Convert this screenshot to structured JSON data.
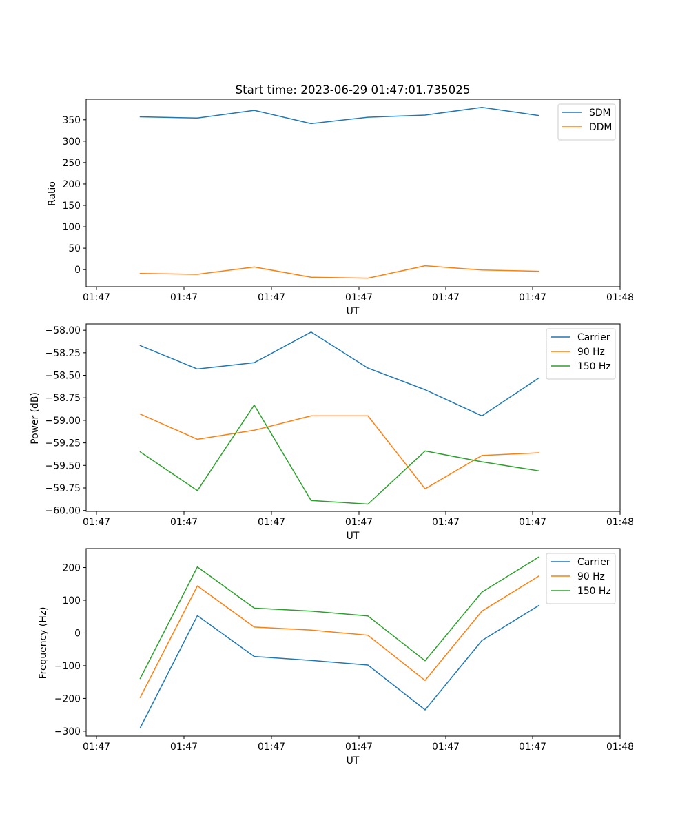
{
  "chart_data": [
    {
      "type": "line",
      "title": "Start time: 2023-06-29 01:47:01.735025",
      "xlabel": "UT",
      "ylabel": "Ratio",
      "x_tick_labels": [
        "01:47",
        "01:47",
        "01:47",
        "01:47",
        "01:47",
        "01:47",
        "01:48"
      ],
      "ylim": [
        -40,
        398
      ],
      "yticks": [
        0,
        50,
        100,
        150,
        200,
        250,
        300,
        350
      ],
      "ytick_labels": [
        "0",
        "50",
        "100",
        "150",
        "200",
        "250",
        "300",
        "350"
      ],
      "legend": "top-right",
      "grid": false,
      "series": [
        {
          "name": "SDM",
          "color": "#1f77b4",
          "values": [
            357,
            354,
            372,
            341,
            356,
            361,
            379,
            360
          ]
        },
        {
          "name": "DDM",
          "color": "#ff7f0e",
          "values": [
            -9,
            -11,
            6,
            -18,
            -20,
            9,
            -1,
            -4
          ]
        }
      ]
    },
    {
      "type": "line",
      "title": "",
      "xlabel": "UT",
      "ylabel": "Power (dB)",
      "x_tick_labels": [
        "01:47",
        "01:47",
        "01:47",
        "01:47",
        "01:47",
        "01:47",
        "01:48"
      ],
      "ylim": [
        -60.01,
        -57.93
      ],
      "yticks": [
        -60.0,
        -59.75,
        -59.5,
        -59.25,
        -59.0,
        -58.75,
        -58.5,
        -58.25,
        -58.0
      ],
      "ytick_labels": [
        "−60.00",
        "−59.75",
        "−59.50",
        "−59.25",
        "−59.00",
        "−58.75",
        "−58.50",
        "−58.25",
        "−58.00"
      ],
      "legend": "top-right",
      "grid": false,
      "series": [
        {
          "name": "Carrier",
          "color": "#1f77b4",
          "values": [
            -58.17,
            -58.43,
            -58.36,
            -58.02,
            -58.42,
            -58.66,
            -58.95,
            -58.53
          ]
        },
        {
          "name": "90 Hz",
          "color": "#ff7f0e",
          "values": [
            -58.93,
            -59.21,
            -59.11,
            -58.95,
            -58.95,
            -59.76,
            -59.39,
            -59.36
          ]
        },
        {
          "name": "150 Hz",
          "color": "#2ca02c",
          "values": [
            -59.35,
            -59.78,
            -58.83,
            -59.89,
            -59.93,
            -59.34,
            -59.46,
            -59.56
          ]
        }
      ]
    },
    {
      "type": "line",
      "title": "",
      "xlabel": "UT",
      "ylabel": "Frequency (Hz)",
      "x_tick_labels": [
        "01:47",
        "01:47",
        "01:47",
        "01:47",
        "01:47",
        "01:47",
        "01:48"
      ],
      "ylim": [
        -315,
        258
      ],
      "yticks": [
        -300,
        -200,
        -100,
        0,
        100,
        200
      ],
      "ytick_labels": [
        "−300",
        "−200",
        "−100",
        "0",
        "100",
        "200"
      ],
      "legend": "top-right",
      "grid": false,
      "series": [
        {
          "name": "Carrier",
          "color": "#1f77b4",
          "values": [
            -290,
            53,
            -72,
            -84,
            -98,
            -235,
            -23,
            84
          ]
        },
        {
          "name": "90 Hz",
          "color": "#ff7f0e",
          "values": [
            -197,
            144,
            18,
            9,
            -7,
            -145,
            67,
            174
          ]
        },
        {
          "name": "150 Hz",
          "color": "#2ca02c",
          "values": [
            -139,
            202,
            76,
            67,
            52,
            -85,
            125,
            232
          ]
        }
      ]
    }
  ]
}
